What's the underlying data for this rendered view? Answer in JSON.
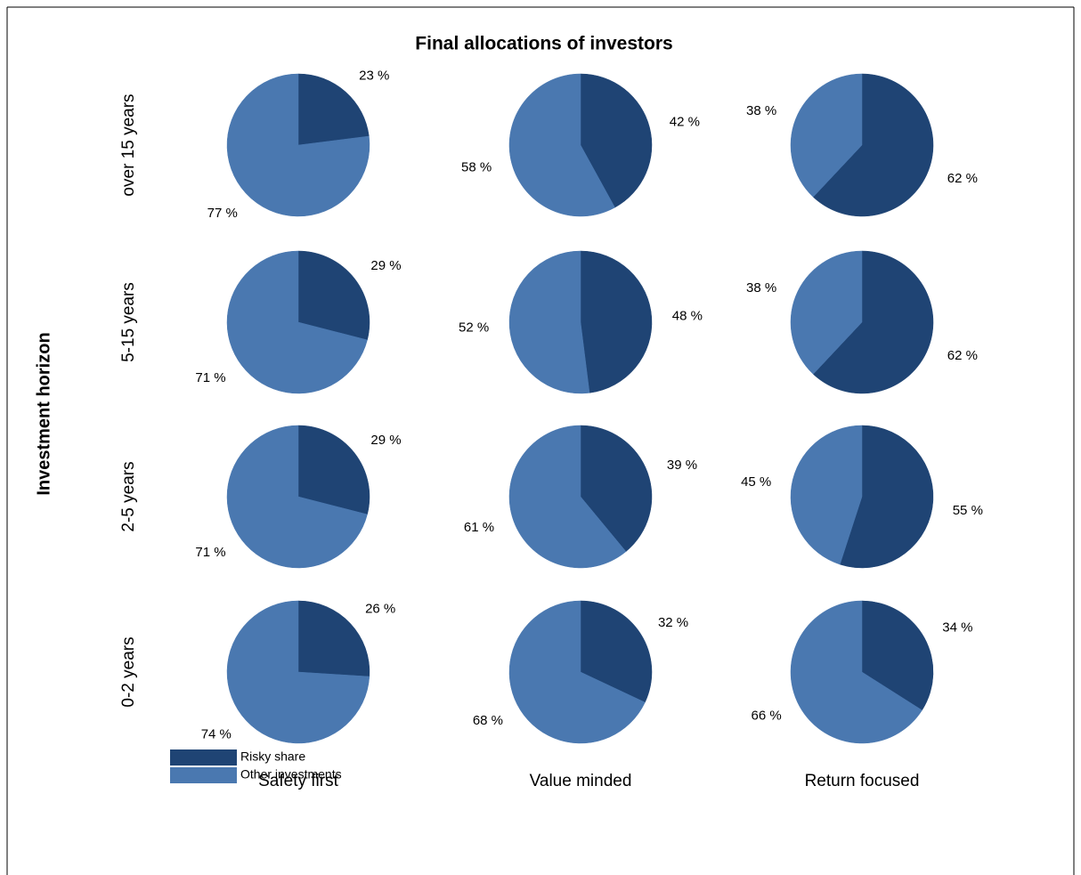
{
  "chart_data": {
    "type": "pie",
    "title": "Final allocations of investors",
    "y_label": "Investment horizon",
    "rows": [
      "over 15 years",
      "5-15 years",
      "2-5 years",
      "0-2 years"
    ],
    "columns": [
      "Safety first",
      "Value minded",
      "Return focused"
    ],
    "series": [
      {
        "name": "Risky share",
        "color": "#1f4474",
        "values": [
          [
            23,
            42,
            62
          ],
          [
            29,
            48,
            62
          ],
          [
            29,
            39,
            55
          ],
          [
            26,
            32,
            34
          ]
        ],
        "value_labels": [
          [
            "23 %",
            "42 %",
            "62 %"
          ],
          [
            "29 %",
            "48 %",
            "62 %"
          ],
          [
            "29 %",
            "39 %",
            "55 %"
          ],
          [
            "26 %",
            "32 %",
            "34 %"
          ]
        ]
      },
      {
        "name": "Other investments",
        "color": "#4a78b0",
        "values": [
          [
            77,
            58,
            38
          ],
          [
            71,
            52,
            38
          ],
          [
            71,
            61,
            45
          ],
          [
            74,
            68,
            66
          ]
        ],
        "value_labels": [
          [
            "77 %",
            "58 %",
            "38 %"
          ],
          [
            "71 %",
            "52 %",
            "38 %"
          ],
          [
            "71 %",
            "61 %",
            "45 %"
          ],
          [
            "74 %",
            "68 %",
            "66 %"
          ]
        ]
      }
    ]
  }
}
